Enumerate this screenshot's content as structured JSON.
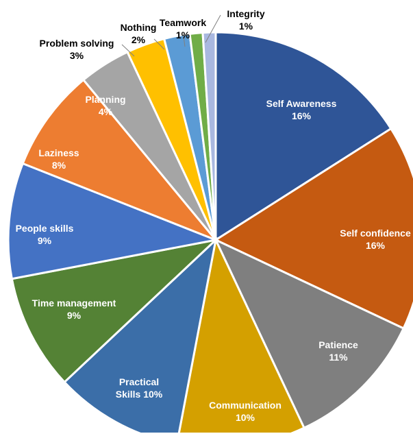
{
  "chart_data": {
    "type": "pie",
    "title": "",
    "slices": [
      {
        "label": "Self Awareness",
        "value": 16,
        "pct_label": "16%",
        "color": "#2F5597"
      },
      {
        "label": "Self confidence",
        "value": 16,
        "pct_label": "16%",
        "color": "#C55A11"
      },
      {
        "label": "Patience",
        "value": 11,
        "pct_label": "11%",
        "color": "#7F7F7F"
      },
      {
        "label": "Communication",
        "value": 10,
        "pct_label": "10%",
        "color": "#D4A000"
      },
      {
        "label": "Practical Skills",
        "value": 10,
        "pct_label": "Skills 10%",
        "line1": "Practical",
        "color": "#3B6EA8"
      },
      {
        "label": "Time management",
        "value": 9,
        "pct_label": "9%",
        "color": "#548235"
      },
      {
        "label": "People skills",
        "value": 9,
        "pct_label": "9%",
        "color": "#4472C4"
      },
      {
        "label": "Laziness",
        "value": 8,
        "pct_label": "8%",
        "color": "#ED7D31"
      },
      {
        "label": "Planning",
        "value": 4,
        "pct_label": "4%",
        "color": "#A5A5A5"
      },
      {
        "label": "Problem solving",
        "value": 3,
        "pct_label": "3%",
        "color": "#FFC000"
      },
      {
        "label": "Nothing",
        "value": 2,
        "pct_label": "2%",
        "color": "#5B9BD5"
      },
      {
        "label": "Teamwork",
        "value": 1,
        "pct_label": "1%",
        "color": "#70AD47"
      },
      {
        "label": "Integrity",
        "value": 1,
        "pct_label": "1%",
        "color": "#A9B8E0"
      }
    ]
  }
}
